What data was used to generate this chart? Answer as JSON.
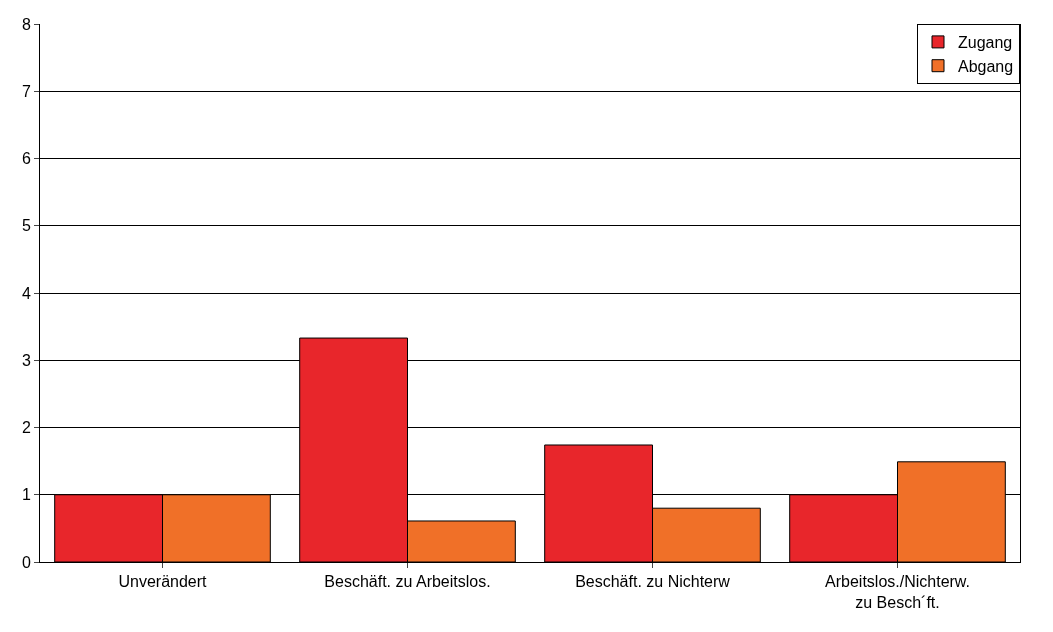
{
  "chart_data": {
    "type": "bar",
    "categories": [
      "Unverändert",
      "Beschäft. zu Arbeitslos.",
      "Beschäft. zu Nichterw",
      "Arbeitslos./Nichterw.\nzu Besch´ft."
    ],
    "series": [
      {
        "name": "Zugang",
        "color": "#e8262b",
        "values": [
          1.0,
          3.33,
          1.74,
          1.0
        ]
      },
      {
        "name": "Abgang",
        "color": "#f07028",
        "values": [
          1.0,
          0.61,
          0.8,
          1.49
        ]
      }
    ],
    "ylim": [
      0,
      8
    ],
    "yticks": [
      0,
      1,
      2,
      3,
      4,
      5,
      6,
      7,
      8
    ],
    "grid": "y",
    "legend": "top right"
  }
}
